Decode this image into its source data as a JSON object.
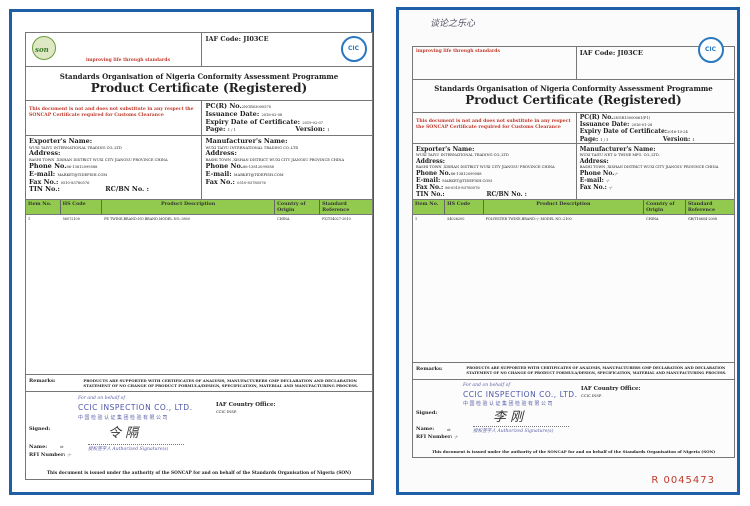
{
  "left_certificate": {
    "tagline": "improving life through standards",
    "iaf_code": "IAF Code:  JI03CE",
    "logo_son_text": "son",
    "logo_cic_text": "CIC",
    "title_org": "Standards Organisation of Nigeria Conformity Assessment Programme",
    "title_doc": "Product Certificate (Registered)",
    "notice": "This document is not and does not substitute in any respect the SONCAP Certificate required for Customs Clearance",
    "pcr_label": "PC(R) No.",
    "pcr_value": "2NGR03000570",
    "issuance_label": "Issuance Date:",
    "issuance_value": "2016-02-08",
    "expiry_label": "Expiry Date of Certificate:",
    "expiry_value": "2019-02-07",
    "page_label": "Page:",
    "page_value": "1 / 1",
    "version_label": "Version:",
    "version_value": "1",
    "exporter": {
      "name_label": "Exporter's Name:",
      "name": "WUXI TAIYU INTERNATIONAL TRADING CO.,LTD",
      "address_label": "Address:",
      "address": "BASHI TOWN ,XISHAN DISTRICT WUXI CITY JIANGSU PROVINCE CHINA",
      "phone_label": "Phone No.",
      "phone": "86-13812099588",
      "email_label": "E-mail:",
      "email": "MARKET@TIDEFISH.COM",
      "fax_label": "Fax No.:",
      "fax": "0510-83780576",
      "tin_label": "TIN No.:",
      "rc_label": "RC/BN No. :"
    },
    "manufacturer": {
      "name_label": "Manufacturer's Name:",
      "name": "WUXI TAIYU INTERNATIONAL TRADING CO.,LTD",
      "address_label": "Address:",
      "address": "BASHI TOWN ,XISHAN DISTRICT WUXI CITY JIANGSU PROVINCE CHINA",
      "phone_label": "Phone No.",
      "phone": "86-13812099588",
      "email_label": "E-mail:",
      "email": "MARKET@TIDEFISH.COM",
      "fax_label": "Fax No.:",
      "fax": "0510-83780576"
    },
    "table": {
      "headers": [
        "Item No.",
        "HS Code",
        "Product Description",
        "Country of Origin",
        "Standard Reference"
      ],
      "rows": [
        [
          "1",
          "56072100",
          "PE TWINE,BRAND:NO BRAND,MODEL NO.:3800",
          "CHINA",
          "FZ/T54027-2010"
        ]
      ]
    },
    "remarks_label": "Remarks:",
    "remarks": "PRODUCTS ARE SUPPORTED WITH CERTIFICATES OF ANALYSIS, MANUFACTURERS GMP DECLARATION AND DECLARATION STATEMENT OF NO CHANGE OF PRODUCT FORMULA/DESIGN, SPECIFICATION, MATERIAL AND MANUFACTURING PROCESS.",
    "stamp_line1": "For and on behalf of",
    "stamp_company": "CCIC INSPECTION CO., LTD.",
    "stamp_cn": "中国检验认证集团检验有限公司",
    "stamp_auth": "授权签字人 Authorized Signature(s)",
    "signed_label": "Signed:",
    "name_label": "Name:",
    "name_value": "ot",
    "rfi_label": "RFI Number:",
    "rfi_value": "-/-",
    "iaf_office_label": "IAF Country Office:",
    "iaf_office_value": "CCIC INSP.",
    "footer": "This document is issued under the authority of the SONCAP for and on behalf of the Standards Organisation of Nigeria (SON)"
  },
  "right_certificate": {
    "handwriting": "谈论之乐心",
    "tagline": "improving life through standards",
    "iaf_code": "IAF Code:  JI03CE",
    "logo_cic_text": "CIC",
    "title_org": "Standards Organisation of Nigeria Conformity Assessment Programme",
    "title_doc": "Product Certificate (Registered)",
    "notice": "This document is not and does not substitute in any respect the SONCAP Certificate required for Customs Clearance",
    "pcr_label": "PC(R) No.",
    "pcr_value": "2NGR15000061(P1)",
    "issuance_label": "Issuance Date:",
    "issuance_value": "2016-01-28",
    "expiry_label": "Expiry Date of Certificate:",
    "expiry_value": "2016-10-24",
    "page_label": "Page:",
    "page_value": "1 / 1",
    "version_label": "Version:",
    "version_value": "1",
    "exporter": {
      "name_label": "Exporter's Name:",
      "name": "WUXI TAIYU INTERNATIONAL TRADING CO.,LTD",
      "address_label": "Address:",
      "address": "BASHI TOWN ,XISHAN DISTRICT WUXI CITY JIANGSU PROVINCE CHINA",
      "phone_label": "Phone No.",
      "phone": "86-13812099588",
      "email_label": "E-mail:",
      "email": "MARKET@TIDEFISH.COM",
      "fax_label": "Fax No.:",
      "fax": "86-0510-83780576",
      "tin_label": "TIN No.:",
      "rc_label": "RC/BN No. :"
    },
    "manufacturer": {
      "name_label": "Manufacturer's Name:",
      "name": "WUXI TAIYU NET & TWINE MFG. CO.,LTD.",
      "address_label": "Address:",
      "address": "BASHI TOWN ,XISHAN DISTRICT WUXI CITY JIANGSU PROVINCE CHINA",
      "phone_label": "Phone No.",
      "phone": "-/-",
      "email_label": "E-mail:",
      "email": "-/-",
      "fax_label": "Fax No.:",
      "fax": "-/-"
    },
    "table": {
      "headers": [
        "Item No.",
        "HS Code",
        "Product Description",
        "Country of Origin",
        "Standard Reference"
      ],
      "rows": [
        [
          "1",
          "54026200",
          "POLYESTER TWINE,BRAND:-/-,MODEL NO.:2100",
          "CHINA",
          "GB/T16604-2008"
        ]
      ]
    },
    "remarks_label": "Remarks:",
    "remarks": "PRODUCTS ARE SUPPORTED WITH CERTIFICATES OF ANALYSIS, MANUFACTURERS GMP DECLARATION AND DECLARATION STATEMENT OF NO CHANGE OF PRODUCT FORMULA/DESIGN, SPECIFICATION, MATERIAL AND MANUFACTURING PROCESS.",
    "stamp_line1": "For and on behalf of",
    "stamp_company": "CCIC INSPECTION CO., LTD.",
    "stamp_cn": "中国检验认证集团检验有限公司",
    "stamp_auth": "授权签字人 Authorized Signature(s)",
    "signed_label": "Signed:",
    "name_label": "Name:",
    "name_value": "ot",
    "rfi_label": "RFI Number:",
    "rfi_value": "-/-",
    "iaf_office_label": "IAF Country Office:",
    "iaf_office_value": "CCIC INSP.",
    "footer": "This document is issued under the authority of the SONCAP for and on behalf of the Standards Organisation of Nigeria (SON)",
    "serial_number": "R  0045473"
  },
  "colors": {
    "frame": "#1f5fa6",
    "table_header": "#92c94f",
    "notice": "#c0392b"
  }
}
